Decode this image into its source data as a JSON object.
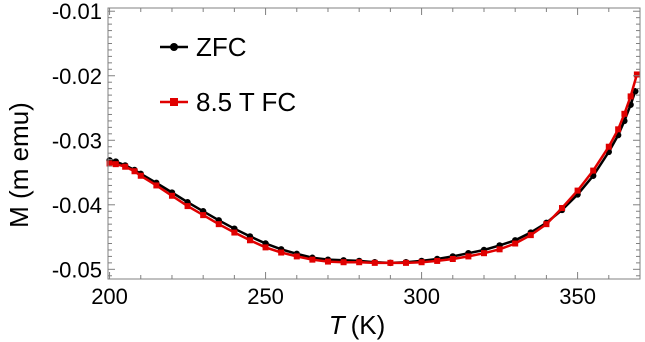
{
  "chart_data": {
    "type": "scatter",
    "xlabel": "T",
    "xlabel_unit": "(K)",
    "ylabel": "M (m emu)",
    "xlim": [
      199.5,
      370
    ],
    "ylim": [
      -0.0515,
      -0.0095
    ],
    "xticks": [
      200,
      250,
      300,
      350
    ],
    "xtick_labels": [
      "200",
      "250",
      "300",
      "350"
    ],
    "yticks": [
      -0.05,
      -0.04,
      -0.03,
      -0.02,
      -0.01
    ],
    "ytick_labels": [
      "-0.05",
      "-0.04",
      "-0.03",
      "-0.02",
      "-0.01"
    ],
    "grid": false,
    "legend_position": "top-left",
    "series": [
      {
        "name": "ZFC",
        "color": "#000000",
        "marker": "circle",
        "x": [
          200,
          202,
          205,
          208,
          210,
          215,
          220,
          225,
          230,
          235,
          240,
          245,
          250,
          255,
          260,
          265,
          270,
          275,
          280,
          285,
          290,
          295,
          300,
          305,
          310,
          315,
          320,
          325,
          330,
          335,
          340,
          345,
          350,
          355,
          360,
          363,
          365,
          367,
          368.5
        ],
        "y": [
          -0.0331,
          -0.0333,
          -0.0339,
          -0.0346,
          -0.0352,
          -0.0366,
          -0.0381,
          -0.0396,
          -0.041,
          -0.0424,
          -0.0437,
          -0.0449,
          -0.046,
          -0.0469,
          -0.0476,
          -0.0482,
          -0.0485,
          -0.0486,
          -0.0487,
          -0.0489,
          -0.049,
          -0.0489,
          -0.0487,
          -0.0484,
          -0.048,
          -0.0475,
          -0.047,
          -0.0463,
          -0.0455,
          -0.0443,
          -0.0428,
          -0.0408,
          -0.0384,
          -0.0355,
          -0.0318,
          -0.0292,
          -0.027,
          -0.0245,
          -0.0224
        ]
      },
      {
        "name": "8.5 T FC",
        "color": "#e00000",
        "marker": "square",
        "x": [
          200,
          202,
          205,
          208,
          210,
          215,
          220,
          225,
          230,
          235,
          240,
          245,
          250,
          255,
          260,
          265,
          270,
          275,
          280,
          285,
          290,
          295,
          300,
          305,
          310,
          315,
          320,
          325,
          330,
          335,
          340,
          345,
          350,
          355,
          360,
          363,
          365,
          367,
          369
        ],
        "y": [
          -0.0336,
          -0.0337,
          -0.0341,
          -0.0348,
          -0.0355,
          -0.037,
          -0.0386,
          -0.0402,
          -0.0416,
          -0.043,
          -0.0443,
          -0.0455,
          -0.0466,
          -0.0474,
          -0.048,
          -0.0485,
          -0.0488,
          -0.0489,
          -0.0489,
          -0.049,
          -0.049,
          -0.049,
          -0.0489,
          -0.0487,
          -0.0484,
          -0.048,
          -0.0475,
          -0.0469,
          -0.046,
          -0.0447,
          -0.043,
          -0.0405,
          -0.0378,
          -0.0347,
          -0.031,
          -0.0283,
          -0.0259,
          -0.0232,
          -0.0198
        ]
      }
    ]
  }
}
